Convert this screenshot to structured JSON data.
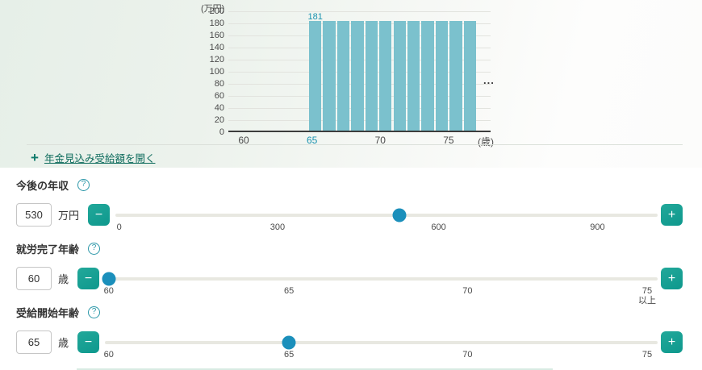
{
  "chart_data": {
    "type": "bar",
    "title": "",
    "y_unit_label": "(万円)",
    "x_unit_label": "(歳)",
    "ylim": [
      0,
      200
    ],
    "y_ticks": [
      0,
      20,
      40,
      60,
      80,
      100,
      120,
      140,
      160,
      180,
      200
    ],
    "x_ticks": [
      60,
      65,
      70,
      75
    ],
    "highlighted_x_tick": 65,
    "grid": "horizontal",
    "bar_color": "#7bc1cd",
    "x_start_age": 65,
    "categories": [
      65,
      66,
      67,
      68,
      69,
      70,
      71,
      72,
      73,
      74,
      75,
      76
    ],
    "values": [
      181,
      181,
      181,
      181,
      181,
      181,
      181,
      181,
      181,
      181,
      181,
      181
    ],
    "value_label": "181",
    "ellipsis": "..."
  },
  "link": {
    "plus_glyph": "+",
    "label": "年金見込み受給額を開く"
  },
  "icons": {
    "help_glyph": "?"
  },
  "buttons": {
    "minus_glyph": "−",
    "plus_glyph": "+"
  },
  "sliders": [
    {
      "name": "future-annual-income",
      "label": "今後の年収",
      "value": "530",
      "unit": "万円",
      "handle_pct": 52.4,
      "ticks": [
        {
          "label": "0",
          "pct": 0.7
        },
        {
          "label": "300",
          "pct": 29.9
        },
        {
          "label": "600",
          "pct": 59.6
        },
        {
          "label": "900",
          "pct": 88.9
        }
      ]
    },
    {
      "name": "employment-end-age",
      "label": "就労完了年齢",
      "value": "60",
      "unit": "歳",
      "handle_pct": 0.7,
      "ticks": [
        {
          "label": "60",
          "pct": 0.7
        },
        {
          "label": "65",
          "pct": 33.3
        },
        {
          "label": "70",
          "pct": 65.6
        },
        {
          "label": "75",
          "pct": 98.1,
          "sub": "以上"
        }
      ]
    },
    {
      "name": "pension-start-age",
      "label": "受給開始年齢",
      "value": "65",
      "unit": "歳",
      "handle_pct": 33.3,
      "ticks": [
        {
          "label": "60",
          "pct": 0.7
        },
        {
          "label": "65",
          "pct": 33.3
        },
        {
          "label": "70",
          "pct": 65.6
        },
        {
          "label": "75",
          "pct": 98.1
        }
      ]
    }
  ]
}
